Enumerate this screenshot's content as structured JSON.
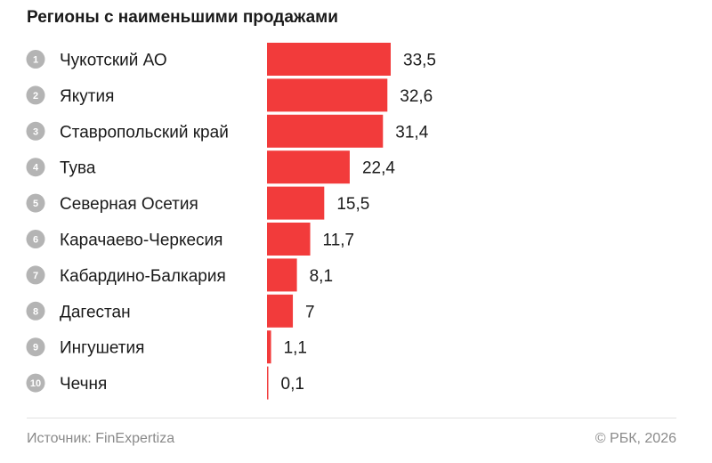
{
  "chart_data": {
    "type": "bar",
    "orientation": "horizontal",
    "title": "Регионы с наименьшими продажами",
    "ranks": [
      "1",
      "2",
      "3",
      "4",
      "5",
      "6",
      "7",
      "8",
      "9",
      "10"
    ],
    "categories": [
      "Чукотский АО",
      "Якутия",
      "Ставропольский край",
      "Тува",
      "Северная Осетия",
      "Карачаево-Черкесия",
      "Кабардино-Балкария",
      "Дагестан",
      "Ингушетия",
      "Чечня"
    ],
    "values": [
      33.5,
      32.6,
      31.4,
      22.4,
      15.5,
      11.7,
      8.1,
      7,
      1.1,
      0.1
    ],
    "value_labels": [
      "33,5",
      "32,6",
      "31,4",
      "22,4",
      "15,5",
      "11,7",
      "8,1",
      "7",
      "1,1",
      "0,1"
    ],
    "xlim": [
      0,
      33.5
    ],
    "bar_color": "#f23b3b",
    "rank_color": "#b4b4b4",
    "grid": false
  },
  "footer": {
    "source": "Источник: FinExpertiza",
    "copyright": "© РБК, 2026"
  }
}
